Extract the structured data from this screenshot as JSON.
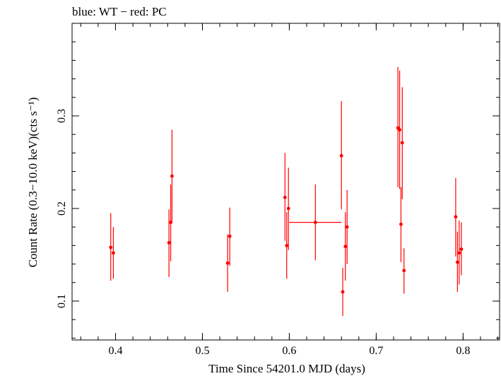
{
  "chart_data": {
    "type": "scatter",
    "title": "blue: WT − red: PC",
    "xlabel": "Time Since 54201.0 MJD (days)",
    "ylabel": "Count Rate (0.3−10.0 keV)(cts s⁻¹)",
    "xlim": [
      0.35,
      0.842
    ],
    "ylim": [
      0.058,
      0.4
    ],
    "x_ticks": [
      {
        "value": 0.4,
        "label": "0.4"
      },
      {
        "value": 0.5,
        "label": "0.5"
      },
      {
        "value": 0.6,
        "label": "0.6"
      },
      {
        "value": 0.7,
        "label": "0.7"
      },
      {
        "value": 0.8,
        "label": "0.8"
      }
    ],
    "y_ticks": [
      {
        "value": 0.1,
        "label": "0.1"
      },
      {
        "value": 0.2,
        "label": "0.2"
      },
      {
        "value": 0.3,
        "label": "0.3"
      }
    ],
    "x_minor_step": 0.02,
    "y_minor_step": 0.02,
    "grid": false,
    "series": [
      {
        "color": "#ff0000",
        "points": [
          {
            "x": 0.3945,
            "y": 0.158,
            "ylo": 0.122,
            "yhi": 0.195,
            "xerr": 0.0005
          },
          {
            "x": 0.3975,
            "y": 0.152,
            "ylo": 0.124,
            "yhi": 0.18,
            "xerr": 0.0005
          },
          {
            "x": 0.4615,
            "y": 0.163,
            "ylo": 0.126,
            "yhi": 0.199,
            "xerr": 0.0005
          },
          {
            "x": 0.4635,
            "y": 0.185,
            "ylo": 0.143,
            "yhi": 0.226,
            "xerr": 0.0005
          },
          {
            "x": 0.465,
            "y": 0.235,
            "ylo": 0.185,
            "yhi": 0.285,
            "xerr": 0.0005
          },
          {
            "x": 0.529,
            "y": 0.141,
            "ylo": 0.11,
            "yhi": 0.172,
            "xerr": 0.0005
          },
          {
            "x": 0.5315,
            "y": 0.17,
            "ylo": 0.138,
            "yhi": 0.201,
            "xerr": 0.0005
          },
          {
            "x": 0.595,
            "y": 0.212,
            "ylo": 0.165,
            "yhi": 0.26,
            "xerr": 0.0005
          },
          {
            "x": 0.597,
            "y": 0.16,
            "ylo": 0.124,
            "yhi": 0.196,
            "xerr": 0.0005
          },
          {
            "x": 0.599,
            "y": 0.2,
            "ylo": 0.155,
            "yhi": 0.244,
            "xerr": 0.0005
          },
          {
            "x": 0.63,
            "y": 0.185,
            "ylo": 0.144,
            "yhi": 0.226,
            "xerr": 0.03
          },
          {
            "x": 0.66,
            "y": 0.257,
            "ylo": 0.199,
            "yhi": 0.316,
            "xerr": 0.0005
          },
          {
            "x": 0.6615,
            "y": 0.11,
            "ylo": 0.084,
            "yhi": 0.136,
            "xerr": 0.0005
          },
          {
            "x": 0.6645,
            "y": 0.159,
            "ylo": 0.122,
            "yhi": 0.196,
            "xerr": 0.0005
          },
          {
            "x": 0.6665,
            "y": 0.18,
            "ylo": 0.14,
            "yhi": 0.22,
            "xerr": 0.0005
          },
          {
            "x": 0.725,
            "y": 0.287,
            "ylo": 0.223,
            "yhi": 0.353,
            "xerr": 0.0005
          },
          {
            "x": 0.727,
            "y": 0.285,
            "ylo": 0.221,
            "yhi": 0.349,
            "xerr": 0.0005
          },
          {
            "x": 0.7285,
            "y": 0.183,
            "ylo": 0.142,
            "yhi": 0.223,
            "xerr": 0.0005
          },
          {
            "x": 0.73,
            "y": 0.271,
            "ylo": 0.21,
            "yhi": 0.331,
            "xerr": 0.0005
          },
          {
            "x": 0.732,
            "y": 0.133,
            "ylo": 0.108,
            "yhi": 0.157,
            "xerr": 0.0005
          },
          {
            "x": 0.7915,
            "y": 0.191,
            "ylo": 0.148,
            "yhi": 0.233,
            "xerr": 0.0005
          },
          {
            "x": 0.7935,
            "y": 0.142,
            "ylo": 0.11,
            "yhi": 0.175,
            "xerr": 0.0005
          },
          {
            "x": 0.7955,
            "y": 0.152,
            "ylo": 0.118,
            "yhi": 0.187,
            "xerr": 0.0005
          },
          {
            "x": 0.798,
            "y": 0.156,
            "ylo": 0.128,
            "yhi": 0.185,
            "xerr": 0.0005
          }
        ]
      }
    ]
  }
}
